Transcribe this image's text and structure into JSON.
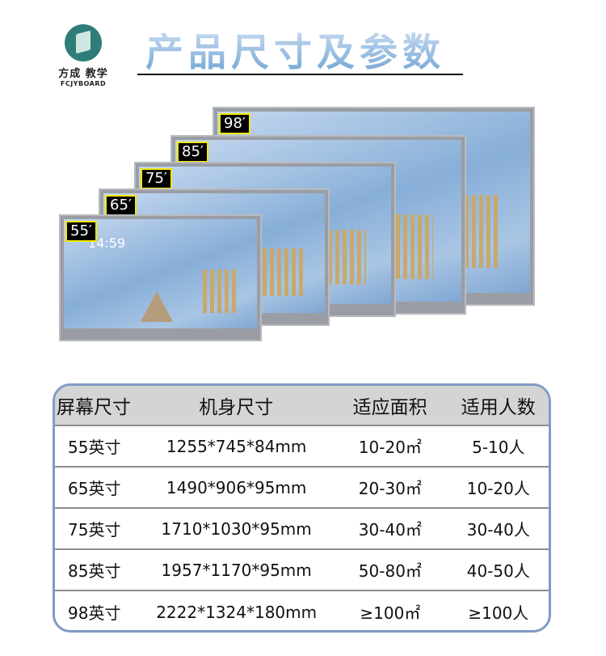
{
  "brand": {
    "name_cn": "方成 教学",
    "name_en": "FCJYBOARD"
  },
  "title": "产品尺寸及参数",
  "screens": [
    {
      "label": "98′"
    },
    {
      "label": "85′"
    },
    {
      "label": "75′"
    },
    {
      "label": "65′"
    },
    {
      "label": "55′",
      "clock": "14:59"
    }
  ],
  "table": {
    "headers": [
      "屏幕尺寸",
      "机身尺寸",
      "适应面积",
      "适用人数"
    ],
    "rows": [
      [
        "55英寸",
        "1255*745*84mm",
        "10-20㎡",
        "5-10人"
      ],
      [
        "65英寸",
        "1490*906*95mm",
        "20-30㎡",
        "10-20人"
      ],
      [
        "75英寸",
        "1710*1030*95mm",
        "30-40㎡",
        "30-40人"
      ],
      [
        "85英寸",
        "1957*1170*95mm",
        "50-80㎡",
        "40-50人"
      ],
      [
        "98英寸",
        "2222*1324*180mm",
        "≥100㎡",
        "≥100人"
      ]
    ]
  }
}
